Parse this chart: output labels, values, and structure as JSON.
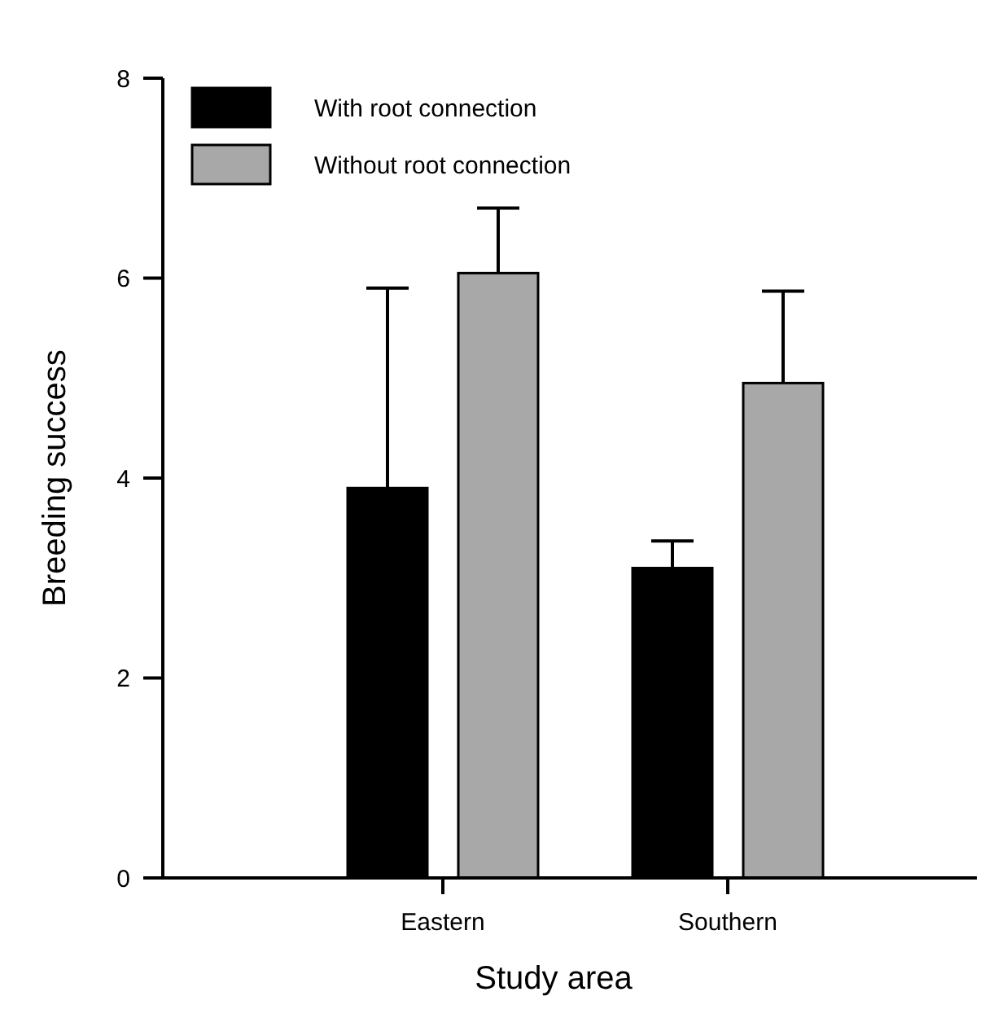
{
  "chart_data": {
    "type": "bar",
    "xlabel": "Study area",
    "ylabel": "Breeding success",
    "categories": [
      "Eastern",
      "Southern"
    ],
    "series": [
      {
        "name": "With root connection",
        "color": "#000000",
        "values": [
          3.9,
          3.1
        ],
        "errors": [
          [
            3.9,
            5.9
          ],
          [
            3.1,
            3.37
          ]
        ]
      },
      {
        "name": "Without root connection",
        "color": "#a8a8a8",
        "values": [
          6.05,
          4.95
        ],
        "errors": [
          [
            6.05,
            6.7
          ],
          [
            4.95,
            5.87
          ]
        ]
      }
    ],
    "ylim": [
      0,
      8
    ],
    "yticks": [
      0,
      2,
      4,
      6,
      8
    ],
    "legend": "top left",
    "grid": false
  }
}
